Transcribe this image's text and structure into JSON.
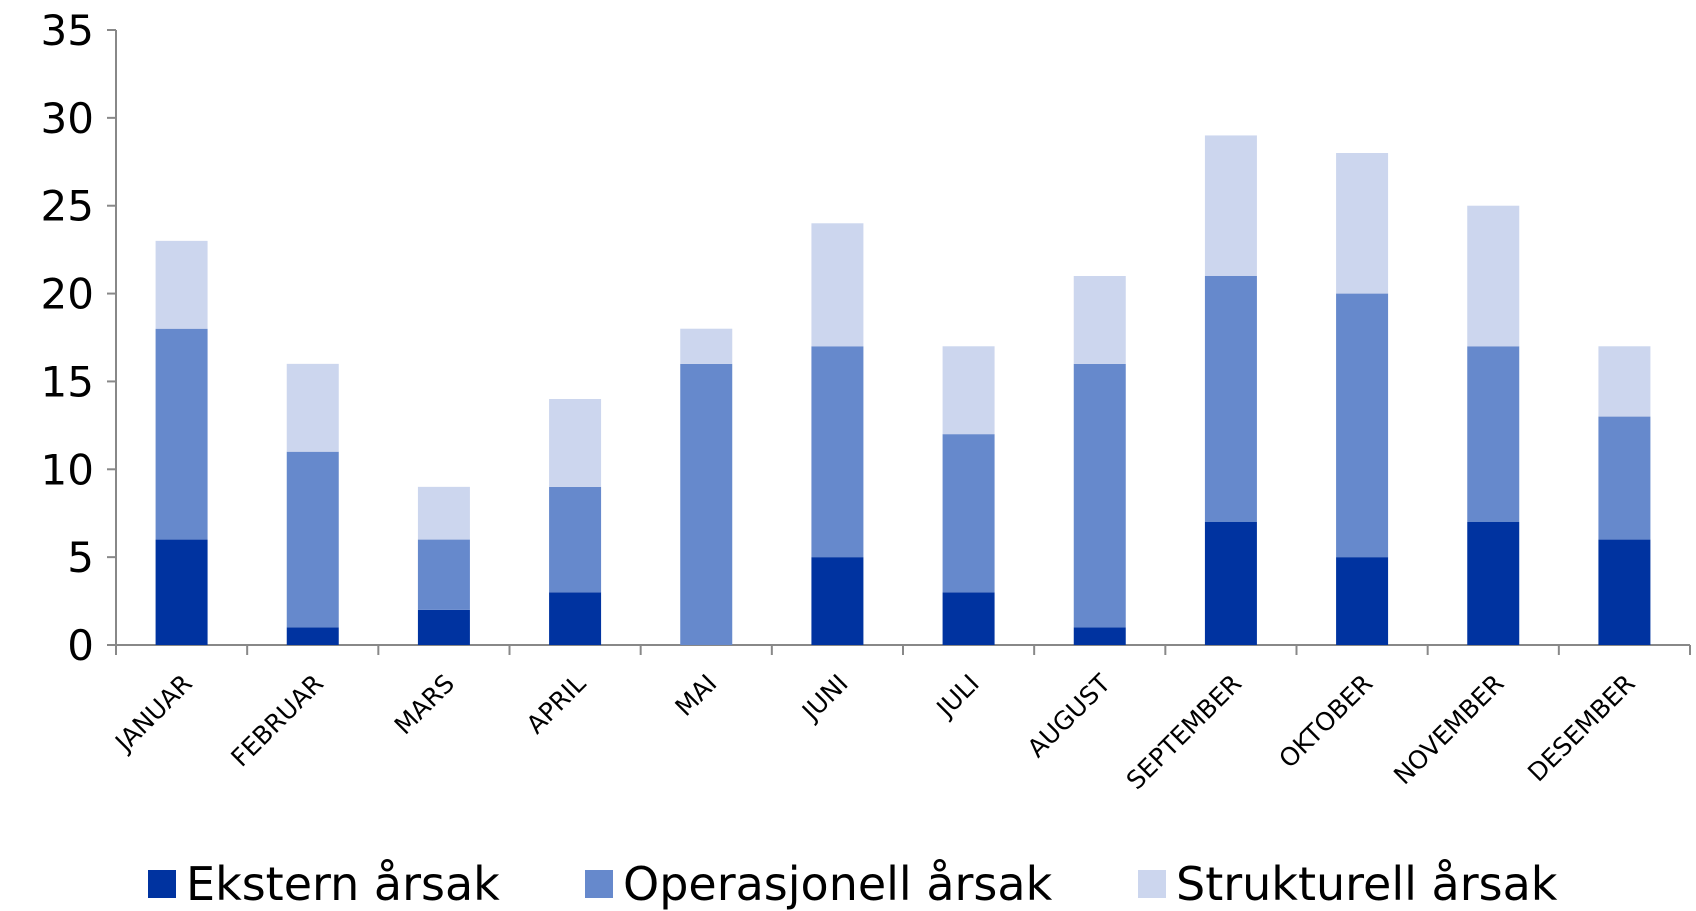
{
  "chart_data": {
    "type": "bar",
    "stacked": true,
    "categories": [
      "JANUAR",
      "FEBRUAR",
      "MARS",
      "APRIL",
      "MAI",
      "JUNI",
      "JULI",
      "AUGUST",
      "SEPTEMBER",
      "OKTOBER",
      "NOVEMBER",
      "DESEMBER"
    ],
    "series": [
      {
        "name": "Ekstern årsak",
        "color": "#0033a0",
        "values": [
          6,
          1,
          2,
          3,
          0,
          5,
          3,
          1,
          7,
          5,
          7,
          6
        ]
      },
      {
        "name": "Operasjonell årsak",
        "color": "#6689cc",
        "values": [
          12,
          10,
          4,
          6,
          16,
          12,
          9,
          15,
          14,
          15,
          10,
          7
        ]
      },
      {
        "name": "Strukturell årsak",
        "color": "#ccd6ee",
        "values": [
          5,
          5,
          3,
          5,
          2,
          7,
          5,
          5,
          8,
          8,
          8,
          4
        ]
      }
    ],
    "ylim": [
      0,
      35
    ],
    "yticks": [
      0,
      5,
      10,
      15,
      20,
      25,
      30,
      35
    ],
    "grid": false,
    "legend": "bottom"
  }
}
